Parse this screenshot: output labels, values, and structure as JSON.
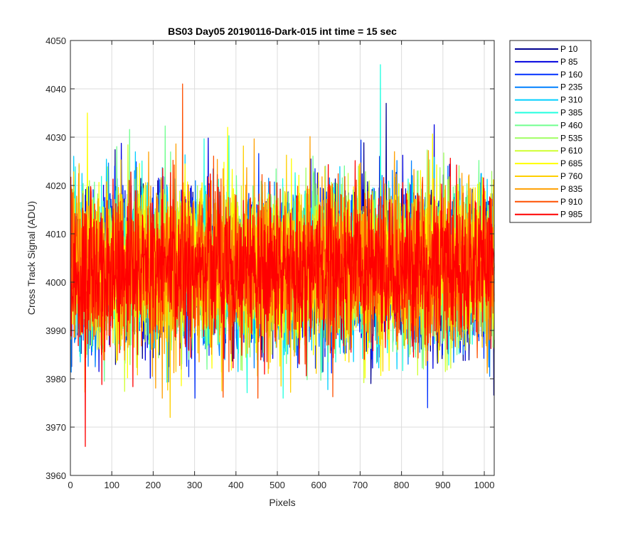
{
  "chart_data": {
    "type": "line",
    "title": "BS03 Day05 20190116-Dark-015 int time = 15 sec",
    "xlabel": "Pixels",
    "ylabel": "Cross Track Signal (ADU)",
    "xlim": [
      0,
      1024
    ],
    "ylim": [
      3960,
      4050
    ],
    "xticks": [
      0,
      100,
      200,
      300,
      400,
      500,
      600,
      700,
      800,
      900,
      1000
    ],
    "yticks": [
      3960,
      3970,
      3980,
      3990,
      4000,
      4010,
      4020,
      4030,
      4040,
      4050
    ],
    "grid": true,
    "legend_position": "outside-top-right",
    "point_count": 1024,
    "mean_level": 4003,
    "typical_range": [
      3984,
      4024
    ],
    "series": [
      {
        "name": "P 10",
        "color": "#00008f"
      },
      {
        "name": "P 85",
        "color": "#0000df"
      },
      {
        "name": "P 160",
        "color": "#0030ff"
      },
      {
        "name": "P 235",
        "color": "#0080ff"
      },
      {
        "name": "P 310",
        "color": "#00cfff"
      },
      {
        "name": "P 385",
        "color": "#20ffdf"
      },
      {
        "name": "P 460",
        "color": "#70ff8f"
      },
      {
        "name": "P 535",
        "color": "#9fff60"
      },
      {
        "name": "P 610",
        "color": "#cfff30"
      },
      {
        "name": "P 685",
        "color": "#ffff00"
      },
      {
        "name": "P 760",
        "color": "#ffcf00"
      },
      {
        "name": "P 835",
        "color": "#ff9f00"
      },
      {
        "name": "P 910",
        "color": "#ff5000"
      },
      {
        "name": "P 985",
        "color": "#ff0000"
      }
    ],
    "annotations": [
      {
        "series": "P 385",
        "x": 748,
        "y": 4045
      },
      {
        "series": "P 910",
        "x": 270,
        "y": 4041
      },
      {
        "series": "P 985",
        "x": 35,
        "y": 3966
      },
      {
        "series": "P 10",
        "x": 762,
        "y": 4037
      },
      {
        "series": "P 685",
        "x": 40,
        "y": 4035
      },
      {
        "series": "P 160",
        "x": 862,
        "y": 3974
      },
      {
        "series": "P 760",
        "x": 240,
        "y": 3972
      }
    ]
  }
}
